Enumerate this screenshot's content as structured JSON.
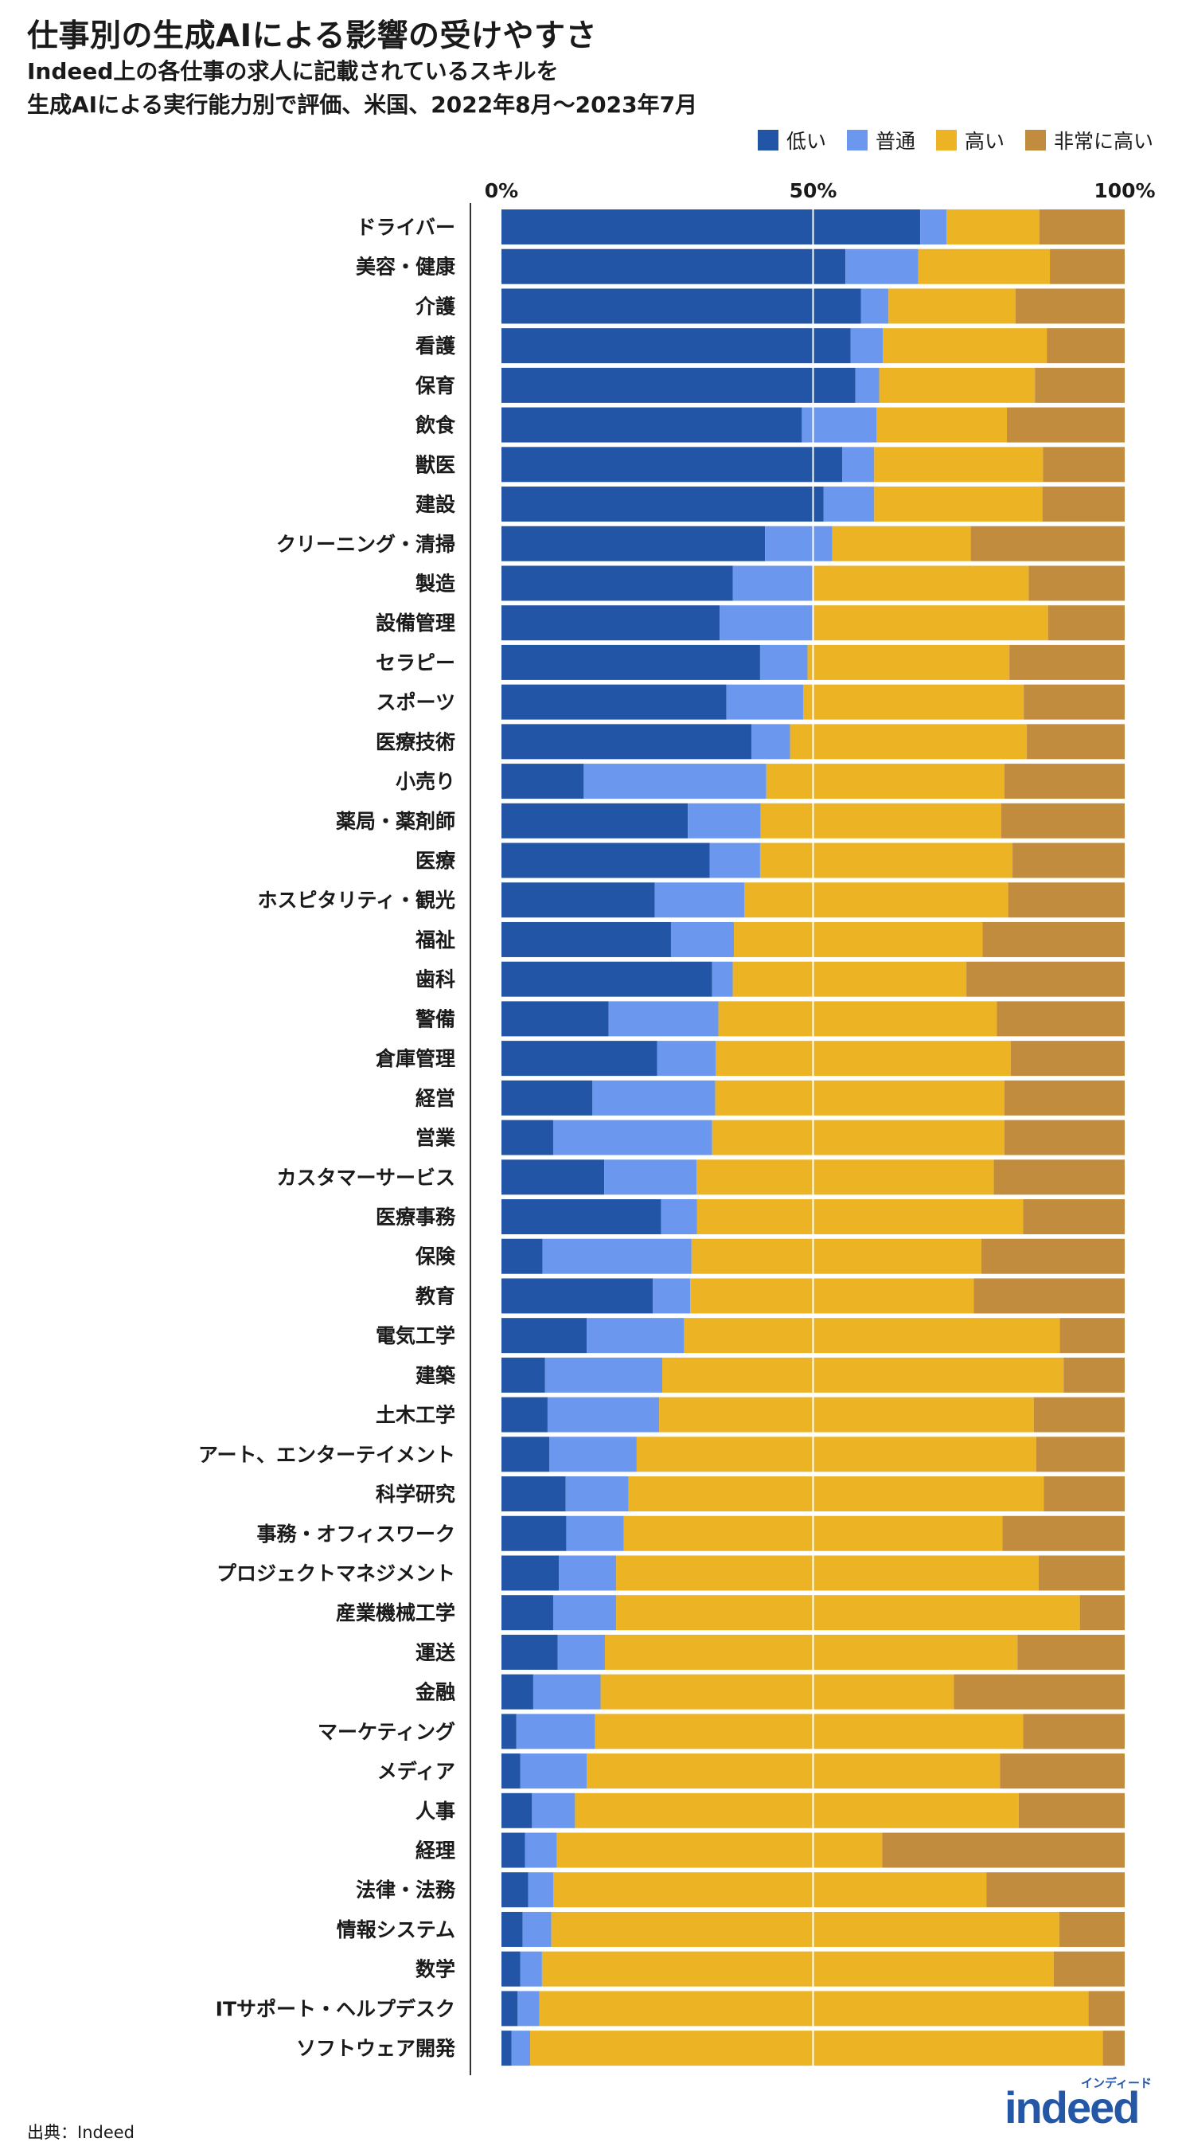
{
  "header": {
    "title": "仕事別の生成AIによる影響の受けやすさ",
    "subtitle_line1": "Indeed上の各仕事の求人に記載されているスキルを",
    "subtitle_line2": "生成AIによる実行能力別で評価、米国、2022年8月〜2023年7月"
  },
  "legend": [
    {
      "label": "低い",
      "color": "#2355a6"
    },
    {
      "label": "普通",
      "color": "#6b98ee"
    },
    {
      "label": "高い",
      "color": "#ecb325"
    },
    {
      "label": "非常に高い",
      "color": "#c18c3e"
    }
  ],
  "footer": {
    "source": "出典：Indeed",
    "logo_text": "indeed",
    "logo_kana": "インディード"
  },
  "chart_data": {
    "type": "bar",
    "orientation": "horizontal",
    "stacked": true,
    "xlim": [
      0,
      100
    ],
    "x_ticks": [
      "0%",
      "50%",
      "100%"
    ],
    "grid": "vertical line at 50%",
    "categories": [
      "ドライバー",
      "美容・健康",
      "介護",
      "看護",
      "保育",
      "飲食",
      "獣医",
      "建設",
      "クリーニング・清掃",
      "製造",
      "設備管理",
      "セラピー",
      "スポーツ",
      "医療技術",
      "小売り",
      "薬局・薬剤師",
      "医療",
      "ホスピタリティ・観光",
      "福祉",
      "歯科",
      "警備",
      "倉庫管理",
      "経営",
      "営業",
      "カスタマーサービス",
      "医療事務",
      "保険",
      "教育",
      "電気工学",
      "建築",
      "土木工学",
      "アート、エンターテイメント",
      "科学研究",
      "事務・オフィスワーク",
      "プロジェクトマネジメント",
      "産業機械工学",
      "運送",
      "金融",
      "マーケティング",
      "メディア",
      "人事",
      "経理",
      "法律・法務",
      "情報システム",
      "数学",
      "ITサポート・ヘルプデスク",
      "ソフトウェア開発"
    ],
    "series": [
      {
        "name": "低い",
        "values": [
          67.2,
          55.2,
          57.7,
          56.0,
          56.8,
          48.2,
          54.7,
          51.7,
          42.3,
          37.1,
          35.0,
          41.5,
          36.1,
          40.1,
          13.2,
          29.9,
          33.4,
          24.6,
          27.2,
          33.8,
          17.2,
          25.0,
          14.6,
          8.3,
          16.5,
          25.6,
          6.6,
          24.3,
          13.7,
          7.0,
          7.4,
          7.7,
          10.3,
          10.4,
          9.2,
          8.3,
          9.0,
          5.1,
          2.4,
          3.0,
          4.9,
          3.8,
          4.3,
          3.4,
          3.0,
          2.6,
          1.6
        ]
      },
      {
        "name": "普通",
        "values": [
          4.2,
          11.7,
          4.4,
          5.2,
          3.8,
          12.0,
          5.1,
          8.1,
          10.8,
          12.9,
          15.0,
          7.6,
          12.3,
          6.2,
          29.3,
          11.7,
          8.1,
          14.4,
          10.1,
          3.3,
          17.6,
          9.4,
          19.7,
          25.5,
          14.8,
          5.8,
          23.9,
          6.0,
          15.6,
          18.8,
          17.9,
          14.0,
          10.1,
          9.2,
          9.2,
          10.1,
          7.6,
          10.8,
          12.6,
          10.7,
          6.9,
          5.1,
          4.0,
          4.6,
          3.5,
          3.5,
          3.0
        ]
      },
      {
        "name": "高い",
        "values": [
          14.9,
          21.1,
          20.4,
          26.3,
          25.0,
          20.9,
          27.1,
          27.0,
          22.2,
          34.6,
          37.7,
          32.4,
          35.4,
          38.0,
          38.2,
          38.6,
          40.5,
          42.3,
          39.9,
          37.5,
          44.7,
          47.3,
          46.4,
          46.9,
          47.7,
          52.3,
          46.5,
          45.5,
          60.3,
          64.4,
          60.1,
          64.1,
          66.6,
          60.8,
          67.8,
          74.4,
          66.2,
          56.7,
          68.7,
          66.3,
          71.2,
          52.2,
          69.5,
          81.5,
          82.1,
          88.1,
          91.9
        ]
      },
      {
        "name": "非常に高い",
        "values": [
          13.7,
          12.0,
          17.5,
          12.5,
          14.4,
          18.9,
          13.1,
          13.2,
          24.7,
          15.4,
          12.3,
          18.5,
          16.2,
          15.7,
          19.3,
          19.8,
          18.0,
          18.7,
          22.8,
          25.4,
          20.5,
          18.3,
          19.3,
          19.3,
          21.0,
          16.3,
          23.0,
          24.2,
          10.4,
          9.8,
          14.6,
          14.2,
          13.0,
          19.6,
          13.8,
          7.2,
          17.2,
          27.4,
          16.3,
          20.0,
          17.0,
          38.9,
          22.2,
          10.5,
          11.4,
          5.8,
          3.5
        ]
      }
    ]
  }
}
